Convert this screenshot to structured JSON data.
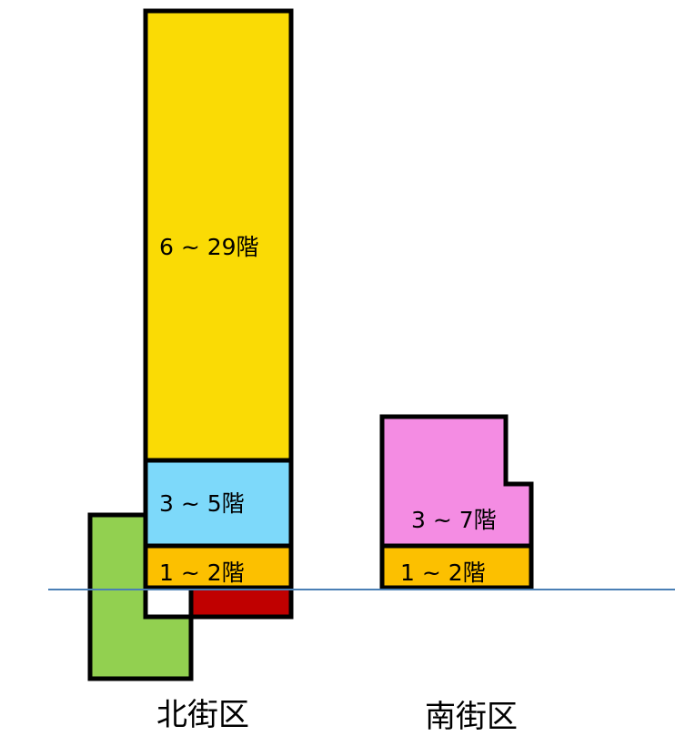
{
  "north_district": {
    "name": "北街区",
    "upper_floors_label": "6 ~ 29階",
    "middle_floors_label": "3 ~ 5階",
    "lower_floors_label": "1 ~ 2階"
  },
  "south_district": {
    "name": "南街区",
    "upper_floors_label": "3 ~ 7階",
    "lower_floors_label": "1 ~ 2階"
  },
  "colors": {
    "tower_upper": "#FADB05",
    "tower_middle": "#7DD9FA",
    "lower_floors": "#FCC000",
    "basement": "#C00000",
    "green_block": "#92D050",
    "south_upper": "#F48CE3",
    "ground_line": "#4A7FB5",
    "outline": "#000000"
  }
}
